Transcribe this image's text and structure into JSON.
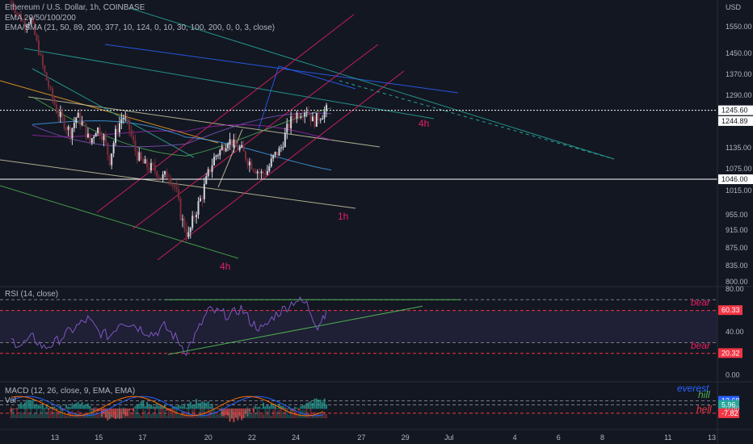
{
  "legend": {
    "symbol": "Ethereum / U.S. Dollar, 1h, COINBASE",
    "ema": "EMA 20/50/100/200",
    "ema_sma": "EMA/SMA (21, 50, 89, 200, 377, 10, 124, 0, 10, 30, 100, 200, 0, 0, 3, close)",
    "rsi": "RSI (14, close)",
    "macd": "MACD (12, 26, close, 9, EMA, EMA)",
    "vol": "Vol"
  },
  "colors": {
    "background": "#131722",
    "bull": "#d1d4dc",
    "bear": "#7a2d3a",
    "channel_pink": "#e91e63",
    "rsi_line": "#7e57c2",
    "annotation_pink": "#e91e63",
    "everest": "#2962ff",
    "hill": "#4caf50",
    "hell": "#f23645"
  },
  "chart_data": [
    {
      "type": "candlestick",
      "panel": "price",
      "currency_label": "USD",
      "y_ticks": [
        1550,
        1450,
        1370,
        1290,
        1245.6,
        1244.89,
        1135,
        1075,
        1046,
        1015,
        955,
        915,
        875,
        835,
        800
      ],
      "y_tick_labels": [
        "1550.00",
        "1450.00",
        "1370.00",
        "1290.00",
        "1245.60",
        "1244.89",
        "1135.00",
        "1075.00",
        "1046.00",
        "1015.00",
        "955.00",
        "915.00",
        "875.00",
        "835.00",
        "800.00"
      ],
      "price_markers": [
        {
          "label": "1245.60",
          "value": 1245.6
        },
        {
          "label": "1244.89",
          "value": 1244.89
        },
        {
          "label": "1046.00",
          "value": 1046.0
        }
      ],
      "horizontal_levels": [
        1245.6,
        1046.0
      ],
      "close_series": [
        [
          11.0,
          1640
        ],
        [
          11.3,
          1600
        ],
        [
          11.6,
          1560
        ],
        [
          11.9,
          1575
        ],
        [
          12.2,
          1480
        ],
        [
          12.5,
          1380
        ],
        [
          12.8,
          1300
        ],
        [
          13.1,
          1240
        ],
        [
          13.4,
          1210
        ],
        [
          13.7,
          1180
        ],
        [
          14.0,
          1230
        ],
        [
          14.3,
          1200
        ],
        [
          14.6,
          1150
        ],
        [
          14.9,
          1195
        ],
        [
          15.2,
          1170
        ],
        [
          15.5,
          1100
        ],
        [
          15.8,
          1185
        ],
        [
          16.1,
          1230
        ],
        [
          16.4,
          1190
        ],
        [
          16.7,
          1120
        ],
        [
          17.0,
          1090
        ],
        [
          17.3,
          1080
        ],
        [
          17.6,
          1070
        ],
        [
          17.9,
          1050
        ],
        [
          18.2,
          1060
        ],
        [
          18.5,
          1020
        ],
        [
          18.8,
          940
        ],
        [
          19.1,
          900
        ],
        [
          19.4,
          960
        ],
        [
          19.7,
          1000
        ],
        [
          20.0,
          1060
        ],
        [
          20.3,
          1110
        ],
        [
          20.6,
          1130
        ],
        [
          20.9,
          1160
        ],
        [
          21.2,
          1140
        ],
        [
          21.5,
          1130
        ],
        [
          21.8,
          1100
        ],
        [
          22.1,
          1080
        ],
        [
          22.4,
          1060
        ],
        [
          22.7,
          1070
        ],
        [
          23.0,
          1110
        ],
        [
          23.3,
          1130
        ],
        [
          23.6,
          1190
        ],
        [
          23.9,
          1230
        ],
        [
          24.2,
          1240
        ],
        [
          24.5,
          1250
        ],
        [
          24.8,
          1210
        ],
        [
          25.1,
          1230
        ],
        [
          25.4,
          1245.6
        ]
      ],
      "annotations": [
        "4h",
        "1h",
        "4h"
      ]
    },
    {
      "type": "line",
      "panel": "rsi",
      "name": "RSI (14, close)",
      "y_ticks": [
        80,
        60.33,
        40,
        20.32,
        0
      ],
      "y_tick_labels": [
        "80.00",
        "60.33",
        "40.00",
        "20.32",
        "0.00"
      ],
      "value_markers": [
        {
          "label": "60.33",
          "value": 60.33
        },
        {
          "label": "20.32",
          "value": 20.32
        }
      ],
      "bands": [
        70,
        60,
        30,
        20
      ],
      "series": [
        [
          11.0,
          32
        ],
        [
          11.5,
          28
        ],
        [
          12.0,
          35
        ],
        [
          12.5,
          25
        ],
        [
          13.0,
          30
        ],
        [
          13.5,
          38
        ],
        [
          14.0,
          45
        ],
        [
          14.5,
          52
        ],
        [
          15.0,
          40
        ],
        [
          15.5,
          36
        ],
        [
          16.0,
          50
        ],
        [
          16.5,
          48
        ],
        [
          17.0,
          42
        ],
        [
          17.5,
          38
        ],
        [
          18.0,
          45
        ],
        [
          18.5,
          35
        ],
        [
          19.0,
          22
        ],
        [
          19.5,
          40
        ],
        [
          20.0,
          60
        ],
        [
          20.5,
          58
        ],
        [
          21.0,
          55
        ],
        [
          21.5,
          62
        ],
        [
          22.0,
          48
        ],
        [
          22.5,
          42
        ],
        [
          23.0,
          55
        ],
        [
          23.5,
          62
        ],
        [
          24.0,
          70
        ],
        [
          24.5,
          66
        ],
        [
          25.0,
          45
        ],
        [
          25.4,
          60.33
        ]
      ],
      "annotations": [
        "bear",
        "bear"
      ]
    },
    {
      "type": "bar",
      "panel": "macd",
      "name": "MACD (12, 26, close, 9, EMA, EMA)",
      "y_ticks": [
        12.68,
        5.96,
        0,
        -7.82
      ],
      "y_tick_labels": [
        "12.68",
        "5.96",
        "0.00",
        "-7.82"
      ],
      "value_markers": [
        {
          "label": "12.68",
          "value": 12.68
        },
        {
          "label": "5.96",
          "value": 5.96
        },
        {
          "label": "-7.82",
          "value": -7.82
        }
      ],
      "annotations": [
        "everest",
        "hill",
        "hell"
      ]
    }
  ],
  "x_axis": {
    "ticks": [
      {
        "label": "13",
        "day": 13
      },
      {
        "label": "15",
        "day": 15
      },
      {
        "label": "17",
        "day": 17
      },
      {
        "label": "20",
        "day": 20
      },
      {
        "label": "22",
        "day": 22
      },
      {
        "label": "24",
        "day": 24
      },
      {
        "label": "27",
        "day": 27
      },
      {
        "label": "29",
        "day": 29
      },
      {
        "label": "Jul",
        "day": 31
      },
      {
        "label": "4",
        "day": 34
      },
      {
        "label": "6",
        "day": 36
      },
      {
        "label": "8",
        "day": 38
      },
      {
        "label": "11",
        "day": 41
      },
      {
        "label": "13",
        "day": 43
      }
    ]
  }
}
